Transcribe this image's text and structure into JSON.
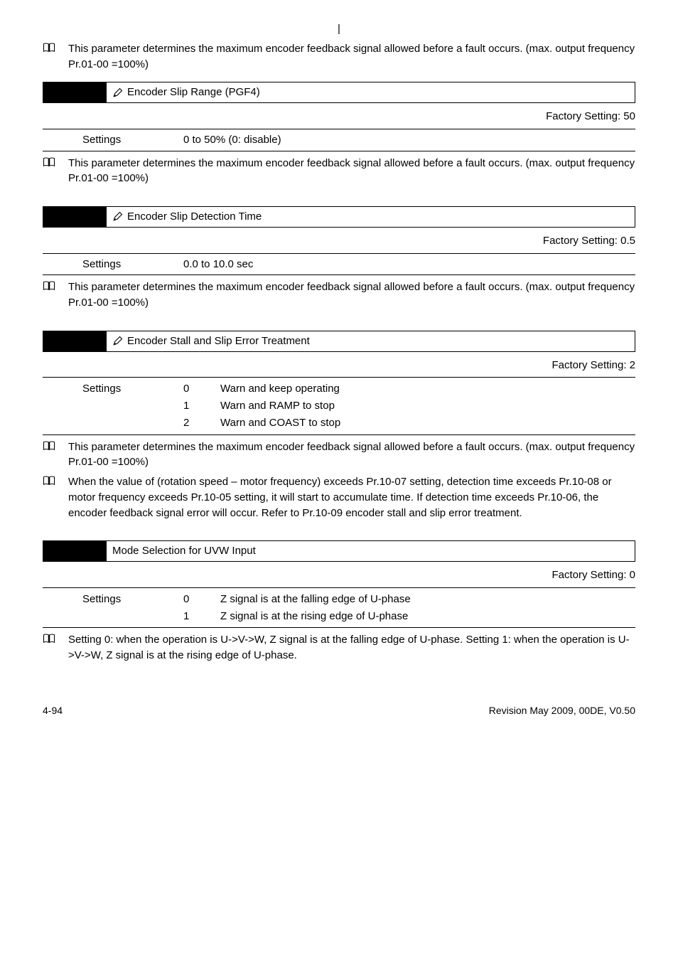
{
  "top_cursor": "|",
  "intro_note": "This parameter determines the maximum encoder feedback signal allowed before a fault occurs. (max. output frequency Pr.01-00 =100%)",
  "params": [
    {
      "title": "Encoder Slip Range (PGF4)",
      "factory": "Factory Setting: 50",
      "settings": [
        {
          "label": "Settings",
          "value": "0 to 50% (0: disable)"
        }
      ],
      "notes": [
        "This parameter determines the maximum encoder feedback signal allowed before a fault occurs. (max. output frequency Pr.01-00 =100%)"
      ]
    },
    {
      "title": "Encoder Slip Detection Time",
      "factory": "Factory Setting: 0.5",
      "settings": [
        {
          "label": "Settings",
          "value": "0.0 to 10.0 sec"
        }
      ],
      "notes": [
        "This parameter determines the maximum encoder feedback signal allowed before a fault occurs. (max. output frequency Pr.01-00 =100%)"
      ]
    },
    {
      "title": "Encoder Stall and Slip Error Treatment",
      "factory": "Factory Setting: 2",
      "options": {
        "label": "Settings",
        "rows": [
          {
            "num": "0",
            "text": "Warn and keep operating"
          },
          {
            "num": "1",
            "text": "Warn and RAMP to stop"
          },
          {
            "num": "2",
            "text": "Warn and COAST to stop"
          }
        ]
      },
      "notes": [
        "This parameter determines the maximum encoder feedback signal allowed before a fault occurs. (max. output frequency Pr.01-00 =100%)",
        "When the value of (rotation speed – motor frequency) exceeds Pr.10-07 setting, detection time exceeds Pr.10-08 or motor frequency exceeds Pr.10-05 setting, it will start to accumulate time. If detection time exceeds Pr.10-06, the encoder feedback signal error will occur. Refer to Pr.10-09 encoder stall and slip error treatment."
      ]
    },
    {
      "title": "Mode Selection for UVW Input",
      "no_pencil": true,
      "factory": "Factory Setting: 0",
      "options": {
        "label": "Settings",
        "rows": [
          {
            "num": "0",
            "text": "Z signal is at the falling edge of U-phase"
          },
          {
            "num": "1",
            "text": "Z signal is at the rising edge of U-phase"
          }
        ]
      },
      "notes": [
        "Setting 0: when the operation is U->V->W, Z signal is at the falling edge of U-phase. Setting 1: when the operation is U->V->W, Z signal is at the rising edge of U-phase."
      ]
    }
  ],
  "footer": {
    "left": "4-94",
    "right": "Revision May 2009, 00DE, V0.50"
  }
}
